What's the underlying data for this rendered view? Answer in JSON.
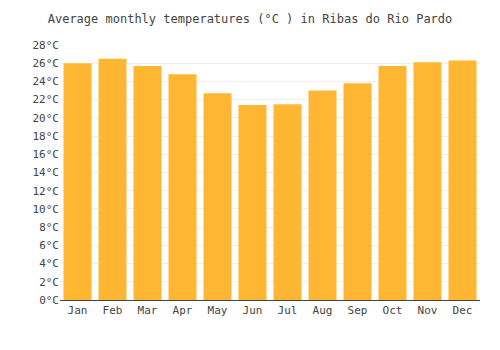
{
  "chart_data": {
    "type": "bar",
    "title": "Average monthly temperatures (°C ) in Ribas do Rio Pardo",
    "categories": [
      "Jan",
      "Feb",
      "Mar",
      "Apr",
      "May",
      "Jun",
      "Jul",
      "Aug",
      "Sep",
      "Oct",
      "Nov",
      "Dec"
    ],
    "values": [
      26.0,
      26.5,
      25.7,
      24.8,
      22.7,
      21.4,
      21.5,
      23.0,
      23.8,
      25.7,
      26.1,
      26.3
    ],
    "color": "#FFB733",
    "ylim": [
      0,
      28
    ],
    "yticks": [
      {
        "value": 0,
        "label": "0°C"
      },
      {
        "value": 2,
        "label": "2°C"
      },
      {
        "value": 4,
        "label": "4°C"
      },
      {
        "value": 6,
        "label": "6°C"
      },
      {
        "value": 8,
        "label": "8°C"
      },
      {
        "value": 10,
        "label": "10°C"
      },
      {
        "value": 12,
        "label": "12°C"
      },
      {
        "value": 14,
        "label": "14°C"
      },
      {
        "value": 16,
        "label": "16°C"
      },
      {
        "value": 18,
        "label": "18°C"
      },
      {
        "value": 20,
        "label": "20°C"
      },
      {
        "value": 22,
        "label": "22°C"
      },
      {
        "value": 24,
        "label": "24°C"
      },
      {
        "value": 26,
        "label": "26°C"
      },
      {
        "value": 28,
        "label": "28°C"
      }
    ],
    "grid": true
  }
}
